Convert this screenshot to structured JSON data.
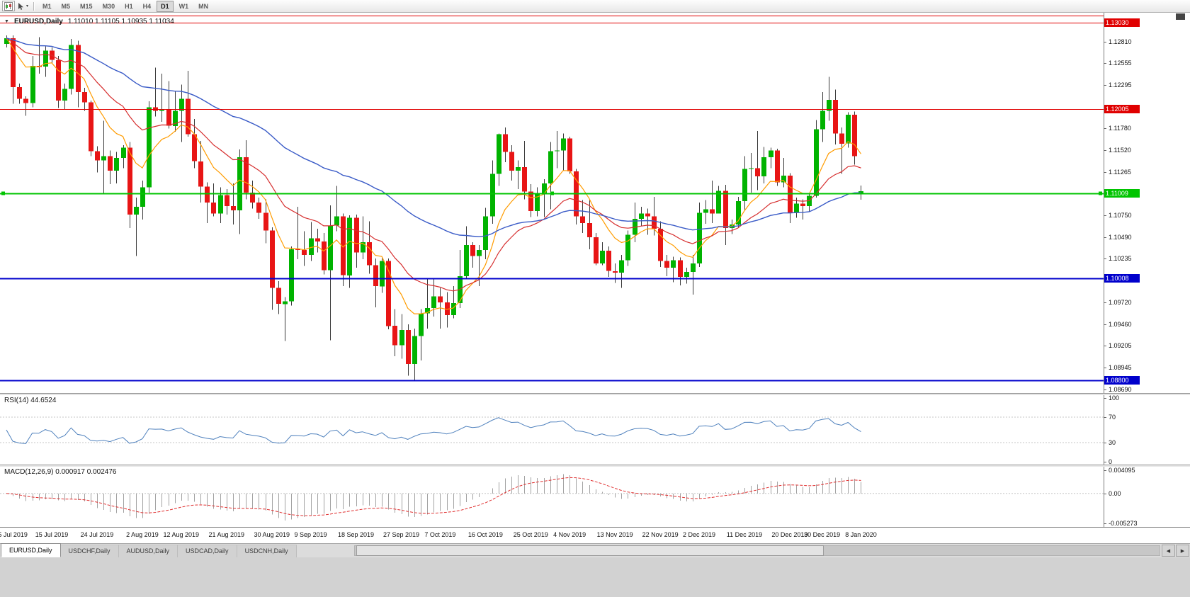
{
  "toolbar": {
    "timeframes": [
      "M1",
      "M5",
      "M15",
      "M30",
      "H1",
      "H4",
      "D1",
      "W1",
      "MN"
    ],
    "active_timeframe": "D1"
  },
  "icons": {
    "one_click_trading": "▼",
    "cursor_dropdown": "▾",
    "scroll_left": "◀",
    "scroll_right": "▶"
  },
  "header": {
    "marker": "▼",
    "symbol": "EURUSD,Daily",
    "ohlc": "1.11010 1.11105 1.10935 1.11034"
  },
  "chart_data": {
    "type": "candlestick",
    "symbol": "EURUSD",
    "timeframe": "Daily",
    "ohlc_current": {
      "open": "1.11010",
      "high": "1.11105",
      "low": "1.10935",
      "close": "1.11034"
    },
    "view_price_max": 1.1315,
    "view_price_min": 1.08645,
    "up_color": "#00b300",
    "down_color": "#e81515",
    "wick_color": "#3a3a3a",
    "candles_ohlc": [
      [
        1.1278,
        1.1288,
        1.1274,
        1.1285
      ],
      [
        1.1285,
        1.1288,
        1.1207,
        1.1227
      ],
      [
        1.1227,
        1.1231,
        1.1207,
        1.1213
      ],
      [
        1.1213,
        1.1216,
        1.1193,
        1.1208
      ],
      [
        1.1208,
        1.1264,
        1.1203,
        1.1252
      ],
      [
        1.1252,
        1.1286,
        1.1243,
        1.1251
      ],
      [
        1.1251,
        1.1275,
        1.1239,
        1.127
      ],
      [
        1.127,
        1.1274,
        1.1255,
        1.1259
      ],
      [
        1.1259,
        1.1264,
        1.1202,
        1.1211
      ],
      [
        1.1211,
        1.1231,
        1.12,
        1.1225
      ],
      [
        1.1225,
        1.1284,
        1.1218,
        1.1277
      ],
      [
        1.1277,
        1.1282,
        1.1203,
        1.1221
      ],
      [
        1.1221,
        1.1226,
        1.1199,
        1.1209
      ],
      [
        1.1209,
        1.1211,
        1.1145,
        1.1151
      ],
      [
        1.1151,
        1.1157,
        1.1126,
        1.114
      ],
      [
        1.114,
        1.1187,
        1.1101,
        1.1145
      ],
      [
        1.1145,
        1.1152,
        1.1112,
        1.1128
      ],
      [
        1.1128,
        1.115,
        1.1113,
        1.1143
      ],
      [
        1.1143,
        1.1158,
        1.1131,
        1.1155
      ],
      [
        1.1155,
        1.1162,
        1.106,
        1.1076
      ],
      [
        1.1076,
        1.1096,
        1.1027,
        1.1085
      ],
      [
        1.1085,
        1.1116,
        1.107,
        1.1108
      ],
      [
        1.1108,
        1.121,
        1.1102,
        1.1203
      ],
      [
        1.1203,
        1.125,
        1.1192,
        1.1199
      ],
      [
        1.1199,
        1.1243,
        1.1186,
        1.12
      ],
      [
        1.12,
        1.1234,
        1.1178,
        1.1181
      ],
      [
        1.1181,
        1.1222,
        1.1174,
        1.1199
      ],
      [
        1.1199,
        1.123,
        1.1162,
        1.1213
      ],
      [
        1.1213,
        1.1246,
        1.1168,
        1.1171
      ],
      [
        1.1171,
        1.1189,
        1.1131,
        1.1139
      ],
      [
        1.1139,
        1.1163,
        1.109,
        1.1109
      ],
      [
        1.1109,
        1.1114,
        1.1066,
        1.109
      ],
      [
        1.109,
        1.1113,
        1.1074,
        1.1077
      ],
      [
        1.1077,
        1.1108,
        1.1066,
        1.1099
      ],
      [
        1.1099,
        1.1106,
        1.1076,
        1.1086
      ],
      [
        1.1086,
        1.1113,
        1.1064,
        1.1081
      ],
      [
        1.1081,
        1.1153,
        1.1053,
        1.1144
      ],
      [
        1.1144,
        1.1164,
        1.1094,
        1.1102
      ],
      [
        1.1102,
        1.1116,
        1.1083,
        1.109
      ],
      [
        1.109,
        1.1096,
        1.1071,
        1.1078
      ],
      [
        1.1078,
        1.1094,
        1.1042,
        1.1057
      ],
      [
        1.1057,
        1.1061,
        1.0963,
        1.0989
      ],
      [
        1.0989,
        1.0997,
        1.0958,
        1.097
      ],
      [
        1.097,
        1.0978,
        1.0926,
        1.0973
      ],
      [
        1.0973,
        1.1038,
        1.0968,
        1.1035
      ],
      [
        1.1035,
        1.1085,
        1.1023,
        1.1034
      ],
      [
        1.1034,
        1.1056,
        1.1015,
        1.1028
      ],
      [
        1.1028,
        1.1067,
        1.1021,
        1.1048
      ],
      [
        1.1048,
        1.1059,
        1.1031,
        1.1044
      ],
      [
        1.1044,
        1.1054,
        1.1005,
        1.101
      ],
      [
        1.101,
        1.1087,
        1.0927,
        1.1063
      ],
      [
        1.1063,
        1.111,
        1.1056,
        1.1074
      ],
      [
        1.1074,
        1.1077,
        1.0991,
        1.1004
      ],
      [
        1.1004,
        1.1075,
        1.0989,
        1.1072
      ],
      [
        1.1072,
        1.1076,
        1.1013,
        1.1031
      ],
      [
        1.1031,
        1.1074,
        1.1023,
        1.1043
      ],
      [
        1.1043,
        1.1068,
        1.1006,
        1.1016
      ],
      [
        1.1016,
        1.1024,
        1.0966,
        1.0991
      ],
      [
        1.0991,
        1.1024,
        1.0983,
        1.1021
      ],
      [
        1.1021,
        1.1024,
        1.094,
        1.0944
      ],
      [
        1.0944,
        1.0964,
        1.0908,
        1.0921
      ],
      [
        1.0921,
        1.0958,
        1.0905,
        1.0939
      ],
      [
        1.0939,
        1.0946,
        1.0885,
        1.0899
      ],
      [
        1.0899,
        1.0941,
        1.0879,
        1.0932
      ],
      [
        1.0932,
        1.0964,
        1.0903,
        1.0959
      ],
      [
        1.0959,
        1.0999,
        1.0941,
        1.0965
      ],
      [
        1.0965,
        1.0999,
        1.0955,
        1.0979
      ],
      [
        1.0979,
        1.0989,
        1.0941,
        1.0972
      ],
      [
        1.0972,
        1.0984,
        1.0942,
        1.0957
      ],
      [
        1.0957,
        1.0991,
        1.0953,
        1.0971
      ],
      [
        1.0971,
        1.1034,
        1.0965,
        1.1003
      ],
      [
        1.1003,
        1.1062,
        1.0999,
        1.104
      ],
      [
        1.104,
        1.1043,
        1.1013,
        1.1027
      ],
      [
        1.1027,
        1.104,
        1.0991,
        1.1034
      ],
      [
        1.1034,
        1.1084,
        1.1023,
        1.1074
      ],
      [
        1.1074,
        1.114,
        1.1065,
        1.1124
      ],
      [
        1.1124,
        1.1172,
        1.111,
        1.1171
      ],
      [
        1.1171,
        1.1179,
        1.1138,
        1.115
      ],
      [
        1.115,
        1.1158,
        1.1116,
        1.1128
      ],
      [
        1.1128,
        1.114,
        1.1106,
        1.1132
      ],
      [
        1.1132,
        1.1163,
        1.1094,
        1.1103
      ],
      [
        1.1103,
        1.1112,
        1.1073,
        1.108
      ],
      [
        1.108,
        1.1108,
        1.1074,
        1.11
      ],
      [
        1.11,
        1.1118,
        1.1073,
        1.1113
      ],
      [
        1.1113,
        1.1162,
        1.1082,
        1.1151
      ],
      [
        1.1151,
        1.1175,
        1.1131,
        1.1152
      ],
      [
        1.1152,
        1.1172,
        1.1128,
        1.1166
      ],
      [
        1.1166,
        1.1168,
        1.1124,
        1.1127
      ],
      [
        1.1127,
        1.113,
        1.1064,
        1.1074
      ],
      [
        1.1074,
        1.1093,
        1.1054,
        1.1066
      ],
      [
        1.1066,
        1.1094,
        1.1035,
        1.1049
      ],
      [
        1.1049,
        1.1054,
        1.1016,
        1.1018
      ],
      [
        1.1018,
        1.1043,
        1.1016,
        1.1033
      ],
      [
        1.1033,
        1.1038,
        1.1002,
        1.1009
      ],
      [
        1.1009,
        1.1018,
        1.0995,
        1.1007
      ],
      [
        1.1007,
        1.1028,
        1.0989,
        1.1022
      ],
      [
        1.1022,
        1.1057,
        1.1015,
        1.1052
      ],
      [
        1.1052,
        1.109,
        1.1043,
        1.1071
      ],
      [
        1.1071,
        1.1085,
        1.1062,
        1.1077
      ],
      [
        1.1077,
        1.1083,
        1.1052,
        1.1074
      ],
      [
        1.1074,
        1.1097,
        1.1051,
        1.1059
      ],
      [
        1.1059,
        1.1068,
        1.1014,
        1.1021
      ],
      [
        1.1021,
        1.1028,
        1.1003,
        1.1013
      ],
      [
        1.1013,
        1.1026,
        1.0996,
        1.1022
      ],
      [
        1.1022,
        1.1025,
        1.0992,
        1.1002
      ],
      [
        1.1002,
        1.1013,
        1.0994,
        1.1008
      ],
      [
        1.1008,
        1.1028,
        1.0981,
        1.1018
      ],
      [
        1.1018,
        1.109,
        1.1014,
        1.1078
      ],
      [
        1.1078,
        1.1093,
        1.1065,
        1.1082
      ],
      [
        1.1082,
        1.1116,
        1.1066,
        1.1077
      ],
      [
        1.1077,
        1.111,
        1.1077,
        1.1104
      ],
      [
        1.1104,
        1.1111,
        1.104,
        1.106
      ],
      [
        1.106,
        1.107,
        1.1053,
        1.1064
      ],
      [
        1.1064,
        1.1097,
        1.1061,
        1.1092
      ],
      [
        1.1092,
        1.1145,
        1.1081,
        1.113
      ],
      [
        1.113,
        1.1149,
        1.1102,
        1.1131
      ],
      [
        1.1131,
        1.1175,
        1.1105,
        1.1121
      ],
      [
        1.1121,
        1.1156,
        1.1113,
        1.1144
      ],
      [
        1.1144,
        1.1155,
        1.1131,
        1.1152
      ],
      [
        1.1152,
        1.1154,
        1.111,
        1.1114
      ],
      [
        1.1114,
        1.1143,
        1.1108,
        1.1122
      ],
      [
        1.1122,
        1.1125,
        1.1066,
        1.1078
      ],
      [
        1.1078,
        1.1096,
        1.1072,
        1.1089
      ],
      [
        1.1089,
        1.1094,
        1.107,
        1.1086
      ],
      [
        1.1086,
        1.1101,
        1.1079,
        1.1098
      ],
      [
        1.1098,
        1.1188,
        1.1096,
        1.1177
      ],
      [
        1.1177,
        1.1221,
        1.1162,
        1.1199
      ],
      [
        1.1199,
        1.1239,
        1.1187,
        1.1212
      ],
      [
        1.1212,
        1.1224,
        1.1159,
        1.1172
      ],
      [
        1.1172,
        1.1179,
        1.1124,
        1.116
      ],
      [
        1.116,
        1.1197,
        1.1155,
        1.1194
      ],
      [
        1.1194,
        1.1198,
        1.1135,
        1.1145
      ],
      [
        1.1101,
        1.11105,
        1.10935,
        1.11034
      ]
    ],
    "date_labels": [
      {
        "i": 1,
        "label": "5 Jul 2019"
      },
      {
        "i": 7,
        "label": "15 Jul 2019"
      },
      {
        "i": 14,
        "label": "24 Jul 2019"
      },
      {
        "i": 21,
        "label": "2 Aug 2019"
      },
      {
        "i": 27,
        "label": "12 Aug 2019"
      },
      {
        "i": 34,
        "label": "21 Aug 2019"
      },
      {
        "i": 41,
        "label": "30 Aug 2019"
      },
      {
        "i": 47,
        "label": "9 Sep 2019"
      },
      {
        "i": 54,
        "label": "18 Sep 2019"
      },
      {
        "i": 61,
        "label": "27 Sep 2019"
      },
      {
        "i": 67,
        "label": "7 Oct 2019"
      },
      {
        "i": 74,
        "label": "16 Oct 2019"
      },
      {
        "i": 81,
        "label": "25 Oct 2019"
      },
      {
        "i": 87,
        "label": "4 Nov 2019"
      },
      {
        "i": 94,
        "label": "13 Nov 2019"
      },
      {
        "i": 101,
        "label": "22 Nov 2019"
      },
      {
        "i": 107,
        "label": "2 Dec 2019"
      },
      {
        "i": 114,
        "label": "11 Dec 2019"
      },
      {
        "i": 121,
        "label": "20 Dec 2019"
      },
      {
        "i": 126,
        "label": "30 Dec 2019"
      },
      {
        "i": 132,
        "label": "8 Jan 2020"
      }
    ],
    "price_ticks": [
      "1.12810",
      "1.12555",
      "1.12295",
      "1.11780",
      "1.11520",
      "1.11265",
      "1.10750",
      "1.10490",
      "1.10235",
      "1.09720",
      "1.09460",
      "1.09205",
      "1.08945",
      "1.08690"
    ],
    "hlines": [
      {
        "price": 1.1312,
        "color": "#e00000",
        "width": 1,
        "label": ""
      },
      {
        "price": 1.1303,
        "color": "#e00000",
        "width": 1,
        "label": "1.13030"
      },
      {
        "price": 1.12005,
        "color": "#e00000",
        "width": 1,
        "label": "1.12005"
      },
      {
        "price": 1.11009,
        "color": "#00c400",
        "width": 2,
        "label": "1.11009",
        "handles": true
      },
      {
        "price": 1.10008,
        "color": "#0000cc",
        "width": 2,
        "label": "1.10008"
      },
      {
        "price": 1.088,
        "color": "#0000cc",
        "width": 2,
        "label": "1.08800"
      }
    ],
    "moving_averages": [
      {
        "name": "ma-fast",
        "period": 9,
        "color": "#ff9c00"
      },
      {
        "name": "ma-medium",
        "period": 21,
        "color": "#d62e2e"
      },
      {
        "name": "ma-slow",
        "period": 55,
        "color": "#3a5bc7"
      }
    ],
    "rsi": {
      "label": "RSI(14) 44.6524",
      "period": 14,
      "current": 44.6524,
      "axis_ticks": [
        "100",
        "70",
        "30",
        "0"
      ],
      "levels": [
        70,
        30
      ],
      "color": "#4f81bd"
    },
    "macd": {
      "label": "MACD(12,26,9) 0.000917 0.002476",
      "fast": 12,
      "slow": 26,
      "signal": 9,
      "current_macd": 0.000917,
      "current_signal": 0.002476,
      "axis_ticks": [
        "0.004095",
        "0.00",
        "-0.005273"
      ],
      "axis_max": 0.004095,
      "axis_min": -0.005273,
      "bar_color": "#a2a2a2",
      "signal_color": "#e03030"
    }
  },
  "tabs": [
    {
      "label": "EURUSD,Daily",
      "active": true
    },
    {
      "label": "USDCHF,Daily",
      "active": false
    },
    {
      "label": "AUDUSD,Daily",
      "active": false
    },
    {
      "label": "USDCAD,Daily",
      "active": false
    },
    {
      "label": "USDCNH,Daily",
      "active": false
    }
  ]
}
